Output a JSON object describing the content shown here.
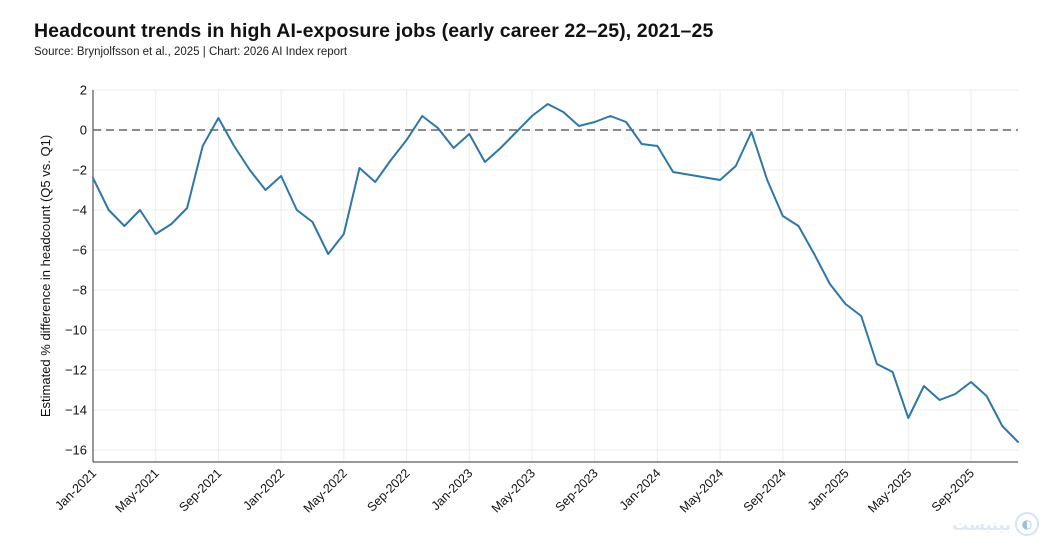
{
  "header": {
    "title": "Headcount trends in high AI-exposure jobs (early career 22–25), 2021–25",
    "subtitle": "Source: Brynjolfsson et al., 2025 | Chart: 2026 AI Index report"
  },
  "watermark": {
    "text": "ﺑﻴﺘﻴﺴﺖ",
    "icon": "circle-logo-icon"
  },
  "chart_data": {
    "type": "line",
    "title": "Headcount trends in high AI-exposure jobs (early career 22–25), 2021–25",
    "xlabel": "",
    "ylabel": "Estimated % difference in headcount (Q5 vs. Q1)",
    "ylim": [
      -16.6,
      2
    ],
    "xlim": [
      "2021-01",
      "2025-12"
    ],
    "yticks": [
      2,
      0,
      -2,
      -4,
      -6,
      -8,
      -10,
      -12,
      -14,
      -16
    ],
    "xticks": [
      "Jan-2021",
      "May-2021",
      "Sep-2021",
      "Jan-2022",
      "May-2022",
      "Sep-2022",
      "Jan-2023",
      "May-2023",
      "Sep-2023",
      "Jan-2024",
      "May-2024",
      "Sep-2024",
      "Jan-2025",
      "May-2025",
      "Sep-2025"
    ],
    "grid": true,
    "reference_line": {
      "y": 0,
      "style": "dashed",
      "color": "#666666"
    },
    "colors": {
      "line": "#2e77a8",
      "grid": "#ececec"
    },
    "series": [
      {
        "x": [
          "2021-01",
          "2021-02",
          "2021-03",
          "2021-04",
          "2021-05",
          "2021-06",
          "2021-07",
          "2021-08",
          "2021-09",
          "2021-10",
          "2021-11",
          "2021-12",
          "2022-01",
          "2022-02",
          "2022-03",
          "2022-04",
          "2022-05",
          "2022-06",
          "2022-07",
          "2022-08",
          "2022-09",
          "2022-10",
          "2022-11",
          "2022-12",
          "2023-01",
          "2023-02",
          "2023-03",
          "2023-04",
          "2023-05",
          "2023-06",
          "2023-07",
          "2023-08",
          "2023-09",
          "2023-10",
          "2023-11",
          "2023-12",
          "2024-01",
          "2024-02",
          "2024-05",
          "2024-06",
          "2024-07",
          "2024-08",
          "2024-09",
          "2024-10",
          "2024-11",
          "2024-12",
          "2025-01",
          "2025-02",
          "2025-03",
          "2025-04",
          "2025-05",
          "2025-06",
          "2025-07",
          "2025-08",
          "2025-09",
          "2025-10",
          "2025-11",
          "2025-12"
        ],
        "values": [
          -2.4,
          -4.0,
          -4.8,
          -4.0,
          -5.2,
          -4.7,
          -3.9,
          -0.8,
          0.6,
          -0.8,
          -2.0,
          -3.0,
          -2.3,
          -4.0,
          -4.6,
          -6.2,
          -5.2,
          -1.9,
          -2.6,
          -1.5,
          -0.5,
          0.7,
          0.1,
          -0.9,
          -0.2,
          -1.6,
          -0.9,
          -0.1,
          0.7,
          1.3,
          0.9,
          0.2,
          0.4,
          0.7,
          0.4,
          -0.7,
          -0.8,
          -2.1,
          -2.5,
          -1.8,
          -0.1,
          -2.5,
          -4.3,
          -4.8,
          -6.2,
          -7.7,
          -8.7,
          -9.3,
          -11.7,
          -12.1,
          -14.4,
          -12.8,
          -13.5,
          -13.2,
          -12.6,
          -13.3,
          -14.8,
          -15.6
        ]
      }
    ]
  }
}
